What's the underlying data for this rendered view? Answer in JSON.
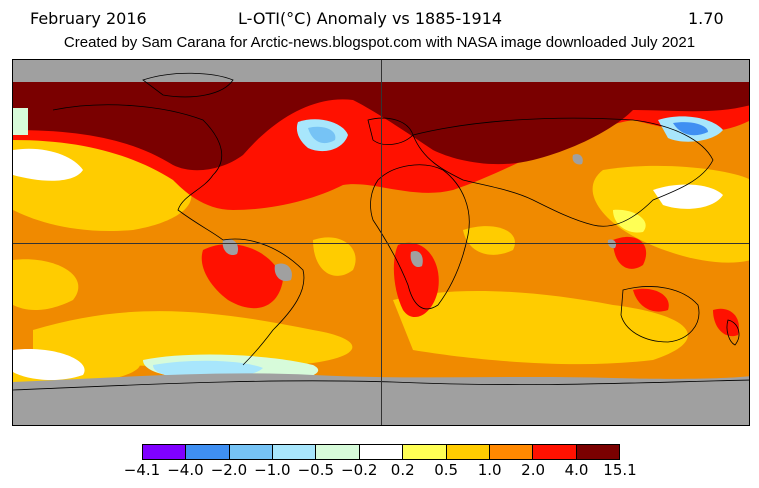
{
  "header": {
    "date": "February 2016",
    "title": "L-OTI(°C) Anomaly vs 1885-1914",
    "global_value": "1.70"
  },
  "credit": "Created by Sam Carana for Arctic-news.blogspot.com with NASA image downloaded July 2021",
  "legend": {
    "colors": [
      "#8000ff",
      "#3f8ff2",
      "#76c3f5",
      "#a8e6fc",
      "#d7fbda",
      "#ffffff",
      "#ffff55",
      "#ffcc00",
      "#ff8800",
      "#ff1100",
      "#7a0000"
    ],
    "labels": [
      "−4.1",
      "−4.0",
      "−2.0",
      "−1.0",
      "−0.5",
      "−0.2",
      "0.2",
      "0.5",
      "1.0",
      "2.0",
      "4.0",
      "15.1"
    ]
  },
  "colors": {
    "no_data": "#a0a0a0",
    "gridline": "#333333",
    "coastline": "#000000"
  }
}
